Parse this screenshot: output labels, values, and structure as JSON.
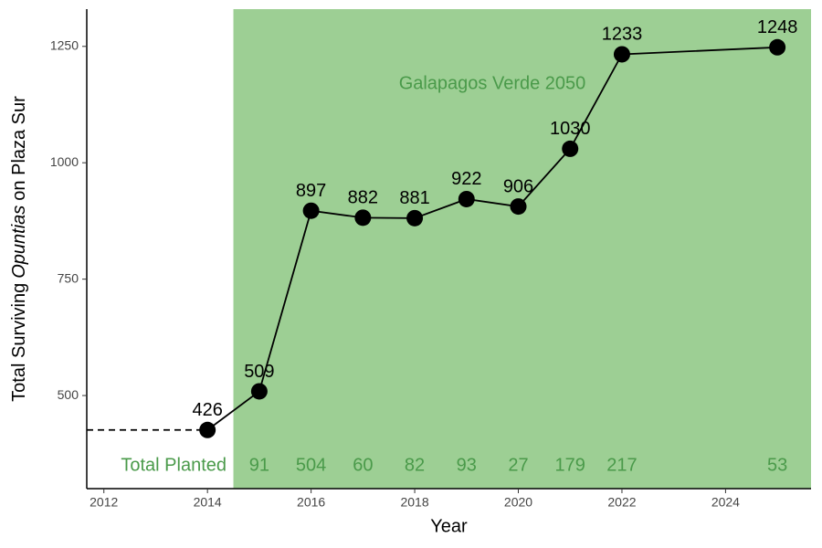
{
  "chart_data": {
    "type": "line",
    "x_label": "Year",
    "y_label": [
      "Total Surviving",
      "Opuntias",
      "on Plaza Sur"
    ],
    "annotation": "Galapagos Verde 2050",
    "planted_label": "Total Planted",
    "x": [
      2014,
      2015,
      2016,
      2017,
      2018,
      2019,
      2020,
      2021,
      2022,
      2025
    ],
    "values": [
      426,
      509,
      897,
      882,
      881,
      922,
      906,
      1030,
      1233,
      1248
    ],
    "planted": [
      null,
      91,
      504,
      60,
      82,
      93,
      27,
      179,
      217,
      53
    ],
    "shade_start": 2014.5,
    "shade_color": "#9dcf94",
    "annotation_color": "#4a9a4a",
    "color": "#000000",
    "xlim": [
      2011.67,
      2025.65
    ],
    "ylim": [
      300,
      1330
    ],
    "xticks": [
      2012,
      2014,
      2016,
      2018,
      2020,
      2022,
      2024
    ],
    "yticks": [
      500,
      750,
      1000,
      1250
    ]
  }
}
